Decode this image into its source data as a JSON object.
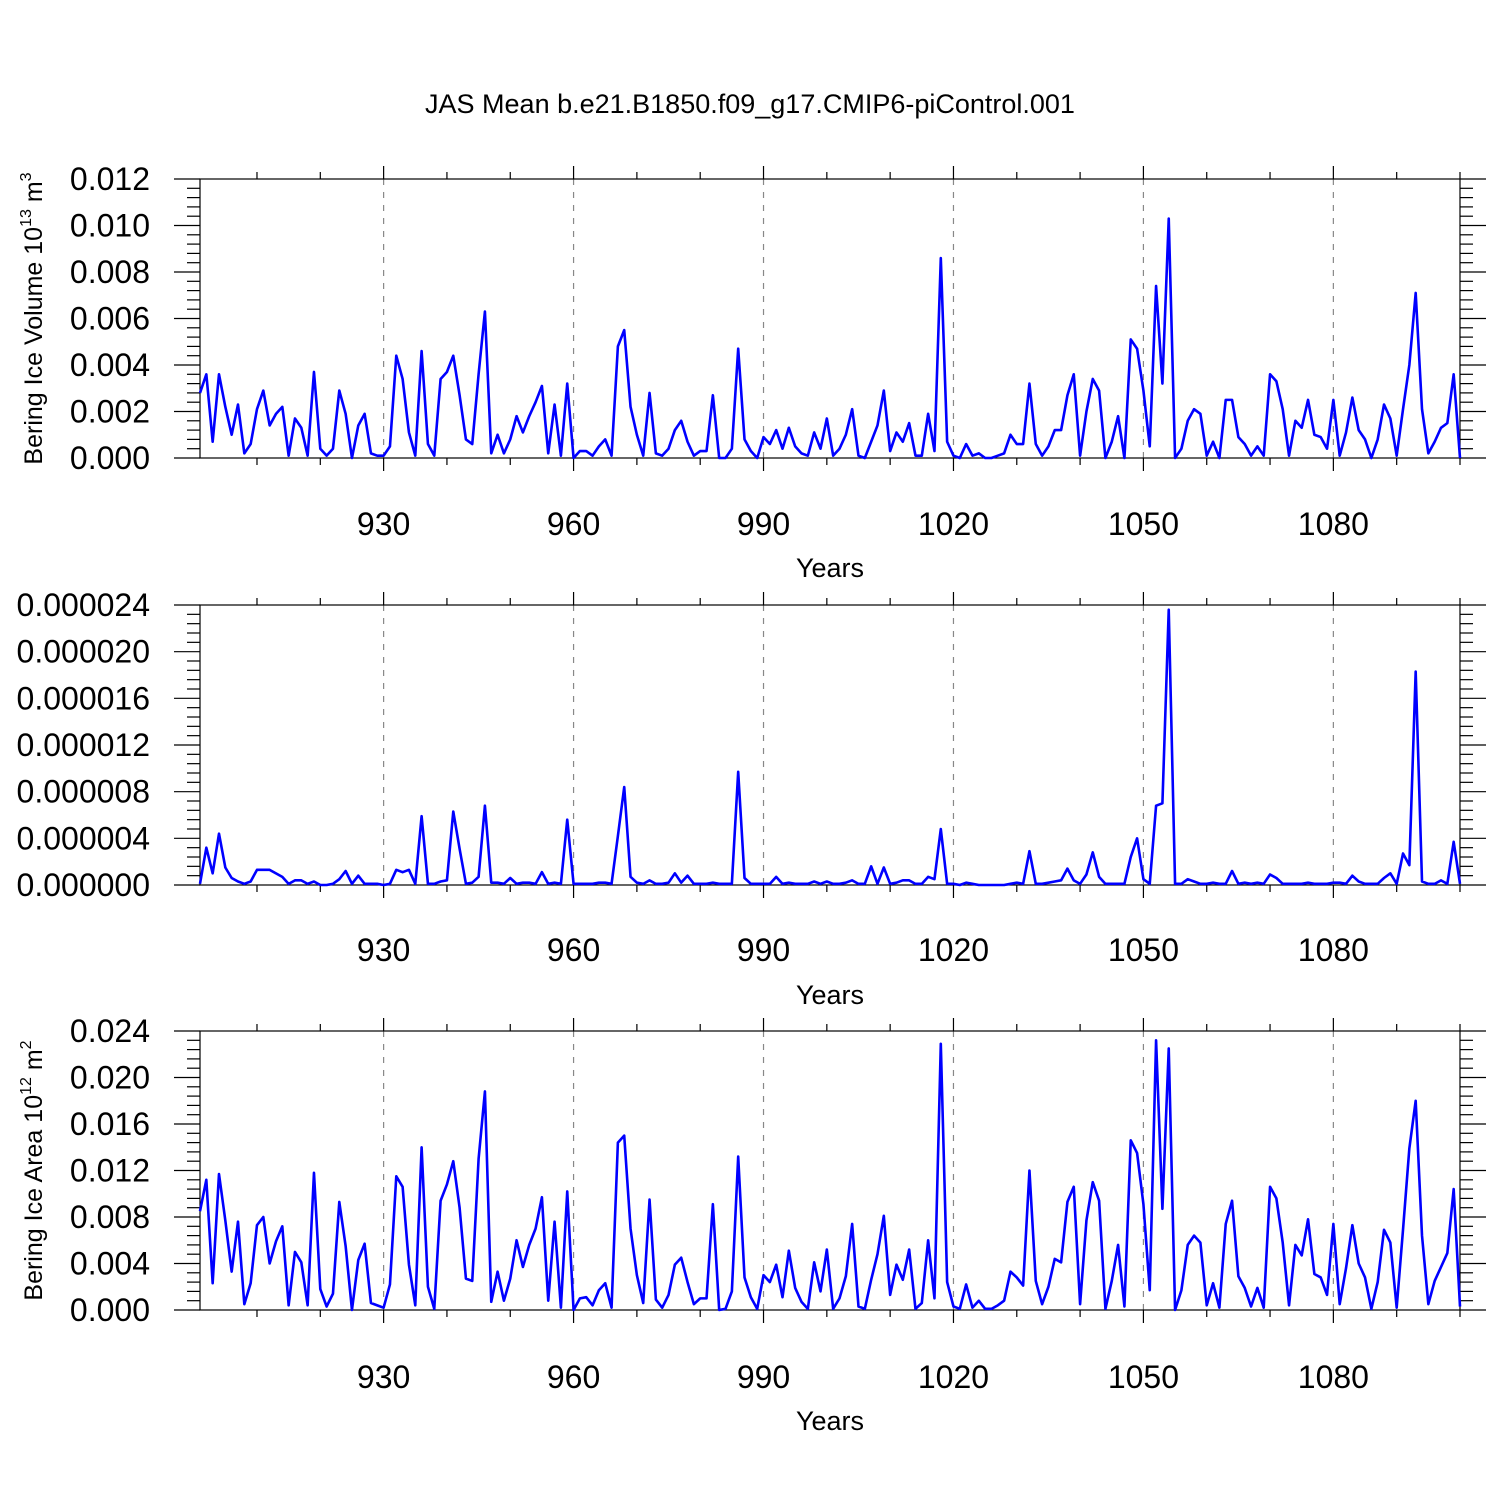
{
  "title": "JAS Mean b.e21.B1850.f09_g17.CMIP6-piControl.001",
  "colors": {
    "series": "#0000ff",
    "grid": "#888888",
    "axis": "#000000"
  },
  "chart_data": [
    {
      "type": "line",
      "title": "JAS Mean b.e21.B1850.f09_g17.CMIP6-piControl.001",
      "xlabel": "Years",
      "ylabel": "Bering Ice Volume 10",
      "ylabel_exp": "13",
      "ylabel_unit": " m",
      "ylabel_unit_exp": "3",
      "xlim": [
        901,
        1100
      ],
      "ylim": [
        0,
        0.012
      ],
      "x_ticks": [
        930,
        960,
        990,
        1020,
        1050,
        1080
      ],
      "x_tick_labels": [
        "930",
        "960",
        "990",
        "1020",
        "1050",
        "1080"
      ],
      "y_ticks": [
        0,
        0.002,
        0.004,
        0.006,
        0.008,
        0.01,
        0.012
      ],
      "y_tick_labels": [
        "0.000",
        "0.002",
        "0.004",
        "0.006",
        "0.008",
        "0.010",
        "0.012"
      ],
      "grid": "x dashed",
      "x_start": 901,
      "values": [
        0.0028,
        0.0036,
        0.0007,
        0.0036,
        0.0022,
        0.001,
        0.0023,
        0.0002,
        0.0006,
        0.0021,
        0.0029,
        0.0014,
        0.0019,
        0.0022,
        0.0001,
        0.0017,
        0.0013,
        0.0001,
        0.0037,
        0.0004,
        0.0001,
        0.0004,
        0.0029,
        0.0019,
        0.0,
        0.0014,
        0.0019,
        0.0002,
        0.0001,
        0.0001,
        0.0005,
        0.0044,
        0.0034,
        0.0011,
        0.0001,
        0.0046,
        0.0006,
        0.0001,
        0.0034,
        0.0037,
        0.0044,
        0.0027,
        0.0008,
        0.0006,
        0.0036,
        0.0063,
        0.0002,
        0.001,
        0.0002,
        0.0008,
        0.0018,
        0.0011,
        0.0018,
        0.0024,
        0.0031,
        0.0002,
        0.0023,
        0.0001,
        0.0032,
        0.0,
        0.0003,
        0.0003,
        0.0001,
        0.0005,
        0.0008,
        0.0001,
        0.0048,
        0.0055,
        0.0022,
        0.001,
        0.0001,
        0.0028,
        0.0002,
        0.0001,
        0.0004,
        0.0012,
        0.0016,
        0.0007,
        0.0001,
        0.0003,
        0.0003,
        0.0027,
        0.0,
        0.0,
        0.0004,
        0.0047,
        0.0008,
        0.0003,
        0.0,
        0.0009,
        0.0006,
        0.0012,
        0.0004,
        0.0013,
        0.0005,
        0.0002,
        0.0001,
        0.0011,
        0.0004,
        0.0017,
        0.0001,
        0.0004,
        0.001,
        0.0021,
        0.0001,
        0.0,
        0.0007,
        0.0014,
        0.0029,
        0.0003,
        0.0011,
        0.0007,
        0.0015,
        0.0001,
        0.0001,
        0.0019,
        0.0003,
        0.0086,
        0.0007,
        0.0001,
        0.0,
        0.0006,
        0.0001,
        0.0002,
        0.0,
        0.0,
        0.0001,
        0.0002,
        0.001,
        0.0006,
        0.0006,
        0.0032,
        0.0006,
        0.0001,
        0.0005,
        0.0012,
        0.0012,
        0.0027,
        0.0036,
        0.0001,
        0.002,
        0.0034,
        0.0029,
        0.0,
        0.0007,
        0.0018,
        0.0,
        0.0051,
        0.0047,
        0.0029,
        0.0005,
        0.0074,
        0.0032,
        0.0103,
        0.0,
        0.0004,
        0.0016,
        0.0021,
        0.0019,
        0.0001,
        0.0007,
        0.0,
        0.0025,
        0.0025,
        0.0009,
        0.0006,
        0.0001,
        0.0005,
        0.0001,
        0.0036,
        0.0033,
        0.0021,
        0.0001,
        0.0016,
        0.0013,
        0.0025,
        0.001,
        0.0009,
        0.0004,
        0.0025,
        0.0001,
        0.0011,
        0.0026,
        0.0012,
        0.0008,
        0.0,
        0.0008,
        0.0023,
        0.0017,
        0.0001,
        0.0021,
        0.004,
        0.0071,
        0.0021,
        0.0002,
        0.0007,
        0.0013,
        0.0015,
        0.0036,
        0.0
      ]
    },
    {
      "type": "line",
      "xlabel": "Years",
      "ylabel": "",
      "xlim": [
        901,
        1100
      ],
      "ylim": [
        0,
        2.4e-05
      ],
      "x_ticks": [
        930,
        960,
        990,
        1020,
        1050,
        1080
      ],
      "x_tick_labels": [
        "930",
        "960",
        "990",
        "1020",
        "1050",
        "1080"
      ],
      "y_ticks": [
        0,
        4e-06,
        8e-06,
        1.2e-05,
        1.6e-05,
        2e-05,
        2.4e-05
      ],
      "y_tick_labels": [
        "0.000000",
        "0.000004",
        "0.000008",
        "0.000012",
        "0.000016",
        "0.000020",
        "0.000024"
      ],
      "grid": "x dashed",
      "x_start": 901,
      "values": [
        1e-07,
        3.2e-06,
        1e-06,
        4.4e-06,
        1.5e-06,
        6e-07,
        3e-07,
        1e-07,
        3e-07,
        1.3e-06,
        1.3e-06,
        1.3e-06,
        1e-06,
        7e-07,
        1e-07,
        4e-07,
        4e-07,
        1e-07,
        3e-07,
        0.0,
        0.0,
        1e-07,
        5e-07,
        1.2e-06,
        1e-07,
        8e-07,
        1e-07,
        1e-07,
        1e-07,
        0.0,
        1e-07,
        1.3e-06,
        1.1e-06,
        1.3e-06,
        1e-07,
        5.9e-06,
        1e-07,
        1e-07,
        3e-07,
        4e-07,
        6.3e-06,
        3.1e-06,
        1e-07,
        2e-07,
        7e-07,
        6.8e-06,
        2e-07,
        2e-07,
        1e-07,
        6e-07,
        1e-07,
        2e-07,
        2e-07,
        1e-07,
        1.1e-06,
        1e-07,
        2e-07,
        1e-07,
        5.6e-06,
        1e-07,
        1e-07,
        1e-07,
        1e-07,
        2e-07,
        2e-07,
        1e-07,
        4.2e-06,
        8.4e-06,
        7e-07,
        2e-07,
        1e-07,
        4e-07,
        1e-07,
        1e-07,
        2e-07,
        1e-06,
        2e-07,
        8e-07,
        1e-07,
        1e-07,
        1e-07,
        2e-07,
        1e-07,
        1e-07,
        1e-07,
        9.7e-06,
        6e-07,
        1e-07,
        1e-07,
        1e-07,
        1e-07,
        7e-07,
        1e-07,
        2e-07,
        1e-07,
        1e-07,
        1e-07,
        3e-07,
        1e-07,
        3e-07,
        1e-07,
        1e-07,
        2e-07,
        4e-07,
        1e-07,
        1e-07,
        1.6e-06,
        1e-07,
        1.5e-06,
        1e-07,
        2e-07,
        4e-07,
        4e-07,
        1e-07,
        1e-07,
        7e-07,
        5e-07,
        4.8e-06,
        1e-07,
        1e-07,
        0.0,
        2e-07,
        1e-07,
        0.0,
        0.0,
        0.0,
        0.0,
        0.0,
        1e-07,
        2e-07,
        1e-07,
        2.9e-06,
        1e-07,
        1e-07,
        2e-07,
        3e-07,
        4e-07,
        1.4e-06,
        4e-07,
        1e-07,
        9e-07,
        2.8e-06,
        7e-07,
        1e-07,
        1e-07,
        1e-07,
        1e-07,
        2.4e-06,
        4e-06,
        5e-07,
        1e-07,
        6.8e-06,
        7e-06,
        2.36e-05,
        1e-07,
        1e-07,
        5e-07,
        3e-07,
        1e-07,
        1e-07,
        2e-07,
        1e-07,
        1e-07,
        1.2e-06,
        1e-07,
        2e-07,
        1e-07,
        2e-07,
        1e-07,
        9e-07,
        6e-07,
        1e-07,
        1e-07,
        1e-07,
        1e-07,
        2e-07,
        1e-07,
        1e-07,
        1e-07,
        2e-07,
        2e-07,
        1e-07,
        8e-07,
        3e-07,
        1e-07,
        1e-07,
        1e-07,
        6e-07,
        1e-06,
        1e-07,
        2.7e-06,
        1.7e-06,
        1.83e-05,
        3e-07,
        1e-07,
        1e-07,
        4e-07,
        1e-07,
        3.7e-06,
        1e-07
      ]
    },
    {
      "type": "line",
      "xlabel": "Years",
      "ylabel": "Bering Ice Area 10",
      "ylabel_exp": "12",
      "ylabel_unit": " m",
      "ylabel_unit_exp": "2",
      "xlim": [
        901,
        1100
      ],
      "ylim": [
        0,
        0.024
      ],
      "x_ticks": [
        930,
        960,
        990,
        1020,
        1050,
        1080
      ],
      "x_tick_labels": [
        "930",
        "960",
        "990",
        "1020",
        "1050",
        "1080"
      ],
      "y_ticks": [
        0,
        0.004,
        0.008,
        0.012,
        0.016,
        0.02,
        0.024
      ],
      "y_tick_labels": [
        "0.000",
        "0.004",
        "0.008",
        "0.012",
        "0.016",
        "0.020",
        "0.024"
      ],
      "grid": "x dashed",
      "x_start": 901,
      "values": [
        0.0085,
        0.0112,
        0.0023,
        0.0117,
        0.0077,
        0.0033,
        0.0076,
        0.0005,
        0.0023,
        0.0073,
        0.008,
        0.004,
        0.0059,
        0.0072,
        0.0004,
        0.005,
        0.0041,
        0.0004,
        0.0118,
        0.0018,
        0.0003,
        0.0014,
        0.0093,
        0.0055,
        0.0,
        0.0043,
        0.0057,
        0.0006,
        0.0004,
        0.0002,
        0.0022,
        0.0115,
        0.0106,
        0.0039,
        0.0004,
        0.014,
        0.002,
        0.0001,
        0.0094,
        0.0108,
        0.0128,
        0.0088,
        0.0027,
        0.0025,
        0.013,
        0.0188,
        0.0007,
        0.0033,
        0.0008,
        0.0027,
        0.006,
        0.0037,
        0.0056,
        0.007,
        0.0097,
        0.0008,
        0.0076,
        0.0002,
        0.0102,
        0.0,
        0.001,
        0.0011,
        0.0004,
        0.0017,
        0.0023,
        0.0002,
        0.0144,
        0.015,
        0.007,
        0.003,
        0.0006,
        0.0095,
        0.0009,
        0.0002,
        0.0013,
        0.0039,
        0.0045,
        0.0024,
        0.0005,
        0.001,
        0.001,
        0.0091,
        0.0,
        0.0001,
        0.0016,
        0.0132,
        0.0028,
        0.0011,
        0.0001,
        0.003,
        0.0024,
        0.0039,
        0.0011,
        0.0051,
        0.0019,
        0.0007,
        0.0001,
        0.0041,
        0.0016,
        0.0052,
        0.0001,
        0.001,
        0.0029,
        0.0074,
        0.0003,
        0.0001,
        0.0026,
        0.0048,
        0.0081,
        0.0013,
        0.0039,
        0.0026,
        0.0052,
        0.0001,
        0.0006,
        0.006,
        0.001,
        0.0229,
        0.0024,
        0.0003,
        0.0001,
        0.0022,
        0.0002,
        0.0008,
        0.0001,
        0.0001,
        0.0004,
        0.0008,
        0.0033,
        0.0028,
        0.0021,
        0.012,
        0.0025,
        0.0005,
        0.002,
        0.0044,
        0.0041,
        0.0093,
        0.0106,
        0.0005,
        0.0077,
        0.011,
        0.0094,
        0.0001,
        0.0025,
        0.0056,
        0.0003,
        0.0146,
        0.0135,
        0.0091,
        0.0017,
        0.0232,
        0.0087,
        0.0225,
        0.0,
        0.0017,
        0.0056,
        0.0064,
        0.0058,
        0.0004,
        0.0023,
        0.0002,
        0.0074,
        0.0094,
        0.0029,
        0.0019,
        0.0003,
        0.0019,
        0.0002,
        0.0106,
        0.0096,
        0.0058,
        0.0004,
        0.0056,
        0.0047,
        0.0078,
        0.0031,
        0.0028,
        0.0013,
        0.0074,
        0.0005,
        0.0036,
        0.0073,
        0.004,
        0.0028,
        0.0001,
        0.0024,
        0.0069,
        0.0058,
        0.0002,
        0.0069,
        0.0139,
        0.018,
        0.0064,
        0.0005,
        0.0025,
        0.0037,
        0.0049,
        0.0104,
        0.0003
      ]
    }
  ]
}
